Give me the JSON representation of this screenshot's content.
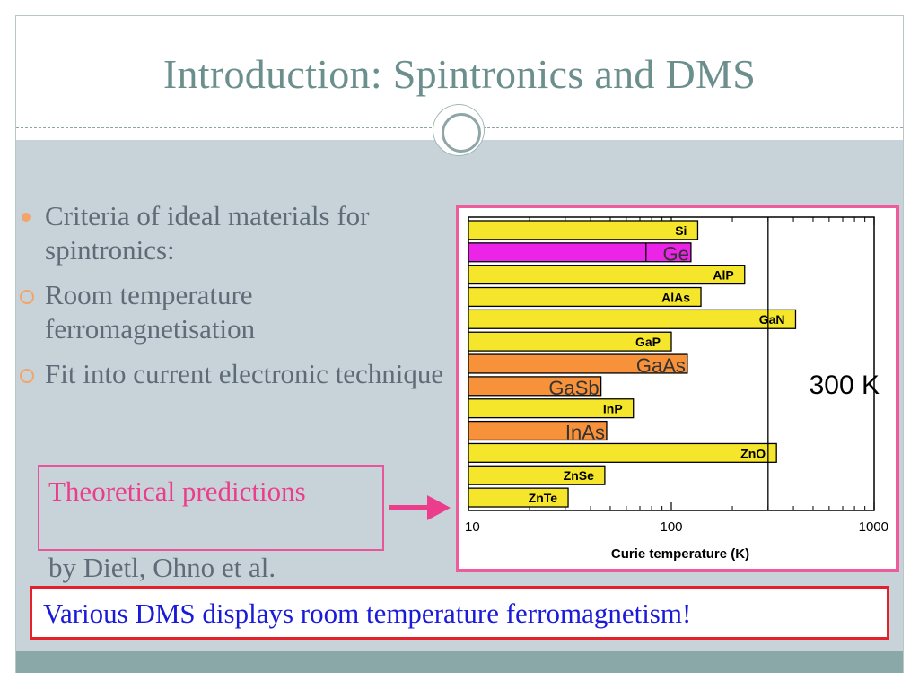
{
  "slide": {
    "title": "Introduction: Spintronics and DMS",
    "bullets": [
      {
        "text": "Criteria of ideal materials for spintronics:",
        "style": "filled"
      },
      {
        "text": "Room temperature ferromagnetisation",
        "style": "hollow"
      },
      {
        "text": "Fit into current electronic technique",
        "style": "hollow"
      }
    ],
    "prediction_label": "Theoretical predictions",
    "prediction_author": "by Dietl, Ohno et al.",
    "banner": "Various DMS displays room temperature ferromagnetism!",
    "colors": {
      "title": "#6b8f8c",
      "accent_pink": "#ec3d8c",
      "banner_border": "#e4202a",
      "banner_text": "#1a1ad9"
    }
  },
  "chart_data": {
    "type": "bar",
    "orientation": "horizontal",
    "xscale": "log",
    "xlim": [
      10,
      1000
    ],
    "xlabel": "Curie temperature (K)",
    "xticks": [
      "10",
      "100",
      "1000"
    ],
    "reference_line": {
      "value": 300,
      "label": "300 K"
    },
    "categories": [
      "Si",
      "Ge",
      "AlP",
      "AlAs",
      "GaN",
      "GaP",
      "GaAs",
      "GaSb",
      "InP",
      "InAs",
      "ZnO",
      "ZnSe",
      "ZnTe"
    ],
    "values": [
      135,
      125,
      230,
      140,
      410,
      100,
      120,
      45,
      65,
      48,
      330,
      47,
      31
    ],
    "bar_colors": [
      "#f5e62b",
      "#ec24e8",
      "#f5e62b",
      "#f5e62b",
      "#f5e62b",
      "#f5e62b",
      "#f7923a",
      "#f7923a",
      "#f5e62b",
      "#f7923a",
      "#f5e62b",
      "#f5e62b",
      "#f5e62b"
    ],
    "label_style": [
      "inside",
      "overlay",
      "inside",
      "inside",
      "inside",
      "inside",
      "overlay",
      "overlay",
      "inside",
      "overlay",
      "inside",
      "inside",
      "inside"
    ]
  }
}
